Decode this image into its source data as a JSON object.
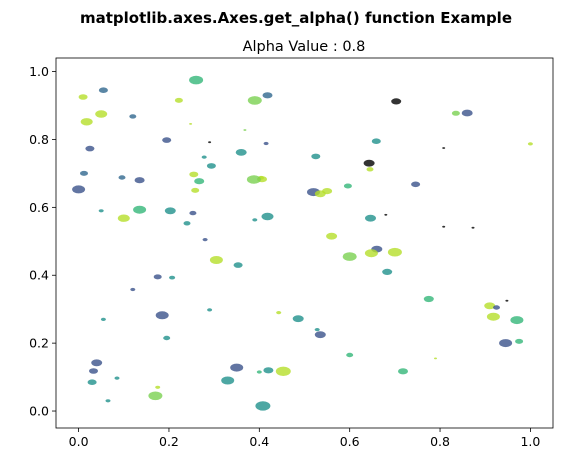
{
  "chart_data": {
    "type": "scatter",
    "suptitle": "matplotlib.axes.Axes.get_alpha() function Example",
    "title": "Alpha Value : 0.8",
    "xlabel": "",
    "ylabel": "",
    "xlim": [
      -0.05,
      1.05
    ],
    "ylim": [
      -0.05,
      1.04
    ],
    "xticks": [
      "0.0",
      "0.2",
      "0.4",
      "0.6",
      "0.8",
      "1.0"
    ],
    "yticks": [
      "0.0",
      "0.2",
      "0.4",
      "0.6",
      "0.8",
      "1.0"
    ],
    "alpha": 0.8,
    "grid": false,
    "legend": "none",
    "colormap": "viridis",
    "points": [
      {
        "x": 0.26,
        "y": 0.975,
        "color": "#35b779",
        "size": 14
      },
      {
        "x": 0.055,
        "y": 0.945,
        "color": "#31688e",
        "size": 9
      },
      {
        "x": 0.01,
        "y": 0.925,
        "color": "#b5de2b",
        "size": 9
      },
      {
        "x": 0.222,
        "y": 0.915,
        "color": "#b5de2b",
        "size": 8
      },
      {
        "x": 0.39,
        "y": 0.915,
        "color": "#7ad151",
        "size": 14
      },
      {
        "x": 0.418,
        "y": 0.93,
        "color": "#31688e",
        "size": 10
      },
      {
        "x": 0.703,
        "y": 0.912,
        "color": "#000000",
        "size": 10
      },
      {
        "x": 0.05,
        "y": 0.875,
        "color": "#b5de2b",
        "size": 12
      },
      {
        "x": 0.12,
        "y": 0.868,
        "color": "#31688e",
        "size": 7
      },
      {
        "x": 0.86,
        "y": 0.878,
        "color": "#3b528b",
        "size": 11
      },
      {
        "x": 0.835,
        "y": 0.877,
        "color": "#7ad151",
        "size": 8
      },
      {
        "x": 0.018,
        "y": 0.852,
        "color": "#b5de2b",
        "size": 12
      },
      {
        "x": 0.248,
        "y": 0.846,
        "color": "#b5de2b",
        "size": 3
      },
      {
        "x": 0.368,
        "y": 0.828,
        "color": "#7ad151",
        "size": 3
      },
      {
        "x": 0.195,
        "y": 0.798,
        "color": "#3b528b",
        "size": 9
      },
      {
        "x": 0.29,
        "y": 0.792,
        "color": "#000000",
        "size": 3
      },
      {
        "x": 0.415,
        "y": 0.788,
        "color": "#3b528b",
        "size": 5
      },
      {
        "x": 0.659,
        "y": 0.795,
        "color": "#21918c",
        "size": 9
      },
      {
        "x": 0.808,
        "y": 0.775,
        "color": "#000000",
        "size": 3
      },
      {
        "x": 0.025,
        "y": 0.773,
        "color": "#3b528b",
        "size": 9
      },
      {
        "x": 0.36,
        "y": 0.762,
        "color": "#21918c",
        "size": 11
      },
      {
        "x": 0.525,
        "y": 0.75,
        "color": "#21918c",
        "size": 9
      },
      {
        "x": 0.278,
        "y": 0.748,
        "color": "#21918c",
        "size": 5
      },
      {
        "x": 0.643,
        "y": 0.73,
        "color": "#000000",
        "size": 11
      },
      {
        "x": 0.294,
        "y": 0.722,
        "color": "#21918c",
        "size": 9
      },
      {
        "x": 0.645,
        "y": 0.712,
        "color": "#b5de2b",
        "size": 7
      },
      {
        "x": 0.012,
        "y": 0.7,
        "color": "#31688e",
        "size": 8
      },
      {
        "x": 0.255,
        "y": 0.697,
        "color": "#b5de2b",
        "size": 9
      },
      {
        "x": 1.0,
        "y": 0.787,
        "color": "#b5de2b",
        "size": 5
      },
      {
        "x": 0.096,
        "y": 0.688,
        "color": "#31688e",
        "size": 7
      },
      {
        "x": 0.135,
        "y": 0.68,
        "color": "#3b528b",
        "size": 10
      },
      {
        "x": 0.267,
        "y": 0.677,
        "color": "#35b779",
        "size": 10
      },
      {
        "x": 0.404,
        "y": 0.687,
        "color": "#b5de2b",
        "size": 6
      },
      {
        "x": 0.406,
        "y": 0.683,
        "color": "#b5de2b",
        "size": 10
      },
      {
        "x": 0.388,
        "y": 0.682,
        "color": "#7ad151",
        "size": 14
      },
      {
        "x": 0.746,
        "y": 0.668,
        "color": "#3b528b",
        "size": 9
      },
      {
        "x": 0.596,
        "y": 0.663,
        "color": "#35b779",
        "size": 8
      },
      {
        "x": 0.0,
        "y": 0.653,
        "color": "#3b528b",
        "size": 13
      },
      {
        "x": 0.258,
        "y": 0.65,
        "color": "#b5de2b",
        "size": 8
      },
      {
        "x": 0.52,
        "y": 0.645,
        "color": "#3b528b",
        "size": 13
      },
      {
        "x": 0.535,
        "y": 0.64,
        "color": "#b5de2b",
        "size": 11
      },
      {
        "x": 0.55,
        "y": 0.648,
        "color": "#b5de2b",
        "size": 10
      },
      {
        "x": 0.135,
        "y": 0.593,
        "color": "#35b779",
        "size": 13
      },
      {
        "x": 0.05,
        "y": 0.59,
        "color": "#21918c",
        "size": 5
      },
      {
        "x": 0.203,
        "y": 0.59,
        "color": "#21918c",
        "size": 11
      },
      {
        "x": 0.253,
        "y": 0.583,
        "color": "#3b528b",
        "size": 7
      },
      {
        "x": 0.418,
        "y": 0.573,
        "color": "#21918c",
        "size": 12
      },
      {
        "x": 0.1,
        "y": 0.568,
        "color": "#b5de2b",
        "size": 12
      },
      {
        "x": 0.646,
        "y": 0.568,
        "color": "#21918c",
        "size": 11
      },
      {
        "x": 0.39,
        "y": 0.563,
        "color": "#21918c",
        "size": 5
      },
      {
        "x": 0.68,
        "y": 0.578,
        "color": "#000000",
        "size": 3
      },
      {
        "x": 0.24,
        "y": 0.553,
        "color": "#21918c",
        "size": 7
      },
      {
        "x": 0.808,
        "y": 0.543,
        "color": "#000000",
        "size": 3
      },
      {
        "x": 0.873,
        "y": 0.54,
        "color": "#000000",
        "size": 3
      },
      {
        "x": 0.56,
        "y": 0.515,
        "color": "#b5de2b",
        "size": 11
      },
      {
        "x": 0.28,
        "y": 0.505,
        "color": "#3b528b",
        "size": 5
      },
      {
        "x": 0.66,
        "y": 0.477,
        "color": "#3b528b",
        "size": 11
      },
      {
        "x": 0.648,
        "y": 0.465,
        "color": "#b5de2b",
        "size": 13
      },
      {
        "x": 0.7,
        "y": 0.468,
        "color": "#b5de2b",
        "size": 14
      },
      {
        "x": 0.6,
        "y": 0.455,
        "color": "#7ad151",
        "size": 14
      },
      {
        "x": 0.305,
        "y": 0.445,
        "color": "#b5de2b",
        "size": 13
      },
      {
        "x": 0.353,
        "y": 0.43,
        "color": "#21918c",
        "size": 9
      },
      {
        "x": 0.683,
        "y": 0.41,
        "color": "#21918c",
        "size": 10
      },
      {
        "x": 0.175,
        "y": 0.395,
        "color": "#3b528b",
        "size": 8
      },
      {
        "x": 0.207,
        "y": 0.393,
        "color": "#21918c",
        "size": 6
      },
      {
        "x": 0.12,
        "y": 0.358,
        "color": "#3b528b",
        "size": 5
      },
      {
        "x": 0.185,
        "y": 0.282,
        "color": "#3b528b",
        "size": 13
      },
      {
        "x": 0.29,
        "y": 0.298,
        "color": "#21918c",
        "size": 5
      },
      {
        "x": 0.775,
        "y": 0.33,
        "color": "#35b779",
        "size": 10
      },
      {
        "x": 0.91,
        "y": 0.31,
        "color": "#b5de2b",
        "size": 11
      },
      {
        "x": 0.925,
        "y": 0.305,
        "color": "#3b528b",
        "size": 7
      },
      {
        "x": 0.948,
        "y": 0.325,
        "color": "#000000",
        "size": 3
      },
      {
        "x": 0.918,
        "y": 0.278,
        "color": "#b5de2b",
        "size": 13
      },
      {
        "x": 0.97,
        "y": 0.268,
        "color": "#35b779",
        "size": 13
      },
      {
        "x": 0.443,
        "y": 0.29,
        "color": "#b5de2b",
        "size": 5
      },
      {
        "x": 0.486,
        "y": 0.272,
        "color": "#21918c",
        "size": 11
      },
      {
        "x": 0.055,
        "y": 0.27,
        "color": "#21918c",
        "size": 5
      },
      {
        "x": 0.528,
        "y": 0.24,
        "color": "#21918c",
        "size": 5
      },
      {
        "x": 0.535,
        "y": 0.225,
        "color": "#3b528b",
        "size": 11
      },
      {
        "x": 0.195,
        "y": 0.215,
        "color": "#21918c",
        "size": 7
      },
      {
        "x": 0.945,
        "y": 0.2,
        "color": "#3b528b",
        "size": 13
      },
      {
        "x": 0.975,
        "y": 0.205,
        "color": "#35b779",
        "size": 8
      },
      {
        "x": 0.6,
        "y": 0.165,
        "color": "#35b779",
        "size": 7
      },
      {
        "x": 0.79,
        "y": 0.155,
        "color": "#b5de2b",
        "size": 3
      },
      {
        "x": 0.04,
        "y": 0.142,
        "color": "#3b528b",
        "size": 11
      },
      {
        "x": 0.033,
        "y": 0.118,
        "color": "#3b528b",
        "size": 9
      },
      {
        "x": 0.35,
        "y": 0.128,
        "color": "#3b528b",
        "size": 13
      },
      {
        "x": 0.42,
        "y": 0.12,
        "color": "#21918c",
        "size": 10
      },
      {
        "x": 0.453,
        "y": 0.117,
        "color": "#b5de2b",
        "size": 15
      },
      {
        "x": 0.4,
        "y": 0.115,
        "color": "#35b779",
        "size": 5
      },
      {
        "x": 0.718,
        "y": 0.117,
        "color": "#35b779",
        "size": 10
      },
      {
        "x": 0.085,
        "y": 0.097,
        "color": "#21918c",
        "size": 5
      },
      {
        "x": 0.03,
        "y": 0.085,
        "color": "#21918c",
        "size": 9
      },
      {
        "x": 0.33,
        "y": 0.09,
        "color": "#21918c",
        "size": 13
      },
      {
        "x": 0.175,
        "y": 0.07,
        "color": "#b5de2b",
        "size": 5
      },
      {
        "x": 0.17,
        "y": 0.045,
        "color": "#7ad151",
        "size": 14
      },
      {
        "x": 0.065,
        "y": 0.03,
        "color": "#21918c",
        "size": 5
      },
      {
        "x": 0.408,
        "y": 0.015,
        "color": "#21918c",
        "size": 15
      }
    ]
  }
}
